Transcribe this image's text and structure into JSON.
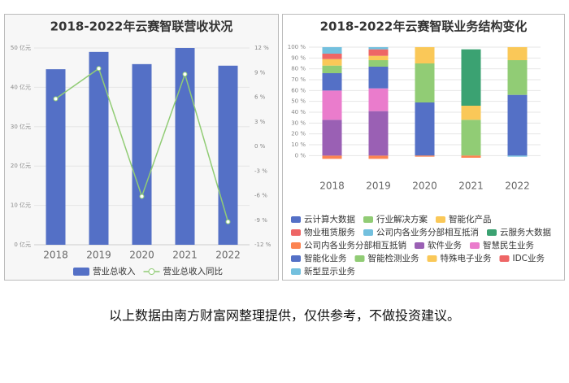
{
  "chart_data": [
    {
      "type": "bar",
      "title": "2018-2022年云赛智联营收状况",
      "categories": [
        "2018",
        "2019",
        "2020",
        "2021",
        "2022"
      ],
      "series": [
        {
          "name": "营业总收入",
          "type": "bar",
          "color": "#5470c6",
          "values": [
            44.6,
            49.0,
            45.9,
            50.0,
            45.5
          ]
        },
        {
          "name": "营业总收入同比",
          "type": "line",
          "axis": "y2",
          "color": "#91cc75",
          "values": [
            5.8,
            9.5,
            -6.1,
            8.8,
            -9.2
          ]
        }
      ],
      "ylim": [
        0,
        50
      ],
      "yticks": [
        {
          "value": 0,
          "label": "0 亿元"
        },
        {
          "value": 10,
          "label": "10 亿元"
        },
        {
          "value": 20,
          "label": "20 亿元"
        },
        {
          "value": 30,
          "label": "30 亿元"
        },
        {
          "value": 40,
          "label": "40 亿元"
        },
        {
          "value": 50,
          "label": "50 亿元"
        }
      ],
      "y2lim": [
        -12,
        12
      ],
      "y2ticks": [
        {
          "value": -12,
          "label": "-12 %"
        },
        {
          "value": -9,
          "label": "-9 %"
        },
        {
          "value": -6,
          "label": "-6 %"
        },
        {
          "value": -3,
          "label": "-3 %"
        },
        {
          "value": 0,
          "label": "0 %"
        },
        {
          "value": 3,
          "label": "3 %"
        },
        {
          "value": 6,
          "label": "6 %"
        },
        {
          "value": 9,
          "label": "9 %"
        },
        {
          "value": 12,
          "label": "12 %"
        }
      ],
      "grid": true
    },
    {
      "type": "stacked_bar",
      "title": "2018-2022年云赛智联业务结构变化",
      "categories": [
        "2018",
        "2019",
        "2020",
        "2021",
        "2022"
      ],
      "series": [
        {
          "name": "云计算大数据",
          "color": "#5470c6",
          "values": [
            null,
            null,
            49,
            null,
            56
          ]
        },
        {
          "name": "行业解决方案",
          "color": "#91cc75",
          "values": [
            null,
            null,
            36,
            33,
            32
          ]
        },
        {
          "name": "智能化产品",
          "color": "#fac858",
          "values": [
            null,
            null,
            15,
            13,
            12
          ]
        },
        {
          "name": "物业租赁服务",
          "color": "#ee6666",
          "values": [
            null,
            null,
            null,
            null,
            null
          ]
        },
        {
          "name": "公司内各业务分部相互抵消",
          "color": "#73c0de",
          "values": [
            null,
            null,
            null,
            null,
            -1
          ]
        },
        {
          "name": "云服务大数据",
          "color": "#3ba272",
          "values": [
            null,
            null,
            null,
            52,
            null
          ]
        },
        {
          "name": "公司内各业务分部相互抵销",
          "color": "#fc8452",
          "values": [
            -3,
            -3,
            -1,
            -2,
            null
          ]
        },
        {
          "name": "软件业务",
          "color": "#9a60b4",
          "values": [
            33,
            41,
            null,
            null,
            null
          ]
        },
        {
          "name": "智慧民生业务",
          "color": "#ea7ccc",
          "values": [
            27,
            21,
            null,
            null,
            null
          ]
        },
        {
          "name": "智能化业务",
          "color": "#5470c6",
          "values": [
            16,
            20,
            null,
            null,
            null
          ]
        },
        {
          "name": "智能检测业务",
          "color": "#91cc75",
          "values": [
            7,
            6,
            null,
            null,
            null
          ]
        },
        {
          "name": "特殊电子业务",
          "color": "#fac858",
          "values": [
            6,
            4,
            null,
            null,
            null
          ]
        },
        {
          "name": "IDC业务",
          "color": "#ee6666",
          "values": [
            5,
            6,
            null,
            null,
            null
          ]
        },
        {
          "name": "新型显示业务",
          "color": "#73c0de",
          "values": [
            6,
            2,
            null,
            null,
            null
          ]
        }
      ],
      "ylim": [
        -5,
        100
      ],
      "yticks": [
        {
          "value": 0,
          "label": "0 %"
        },
        {
          "value": 10,
          "label": "10 %"
        },
        {
          "value": 20,
          "label": "20 %"
        },
        {
          "value": 30,
          "label": "30 %"
        },
        {
          "value": 40,
          "label": "40 %"
        },
        {
          "value": 50,
          "label": "50 %"
        },
        {
          "value": 60,
          "label": "60 %"
        },
        {
          "value": 70,
          "label": "70 %"
        },
        {
          "value": 80,
          "label": "80 %"
        },
        {
          "value": 90,
          "label": "90 %"
        },
        {
          "value": 100,
          "label": "100 %"
        }
      ],
      "grid": true
    }
  ],
  "caption": "以上数据由南方财富网整理提供，仅供参考，不做投资建议。"
}
